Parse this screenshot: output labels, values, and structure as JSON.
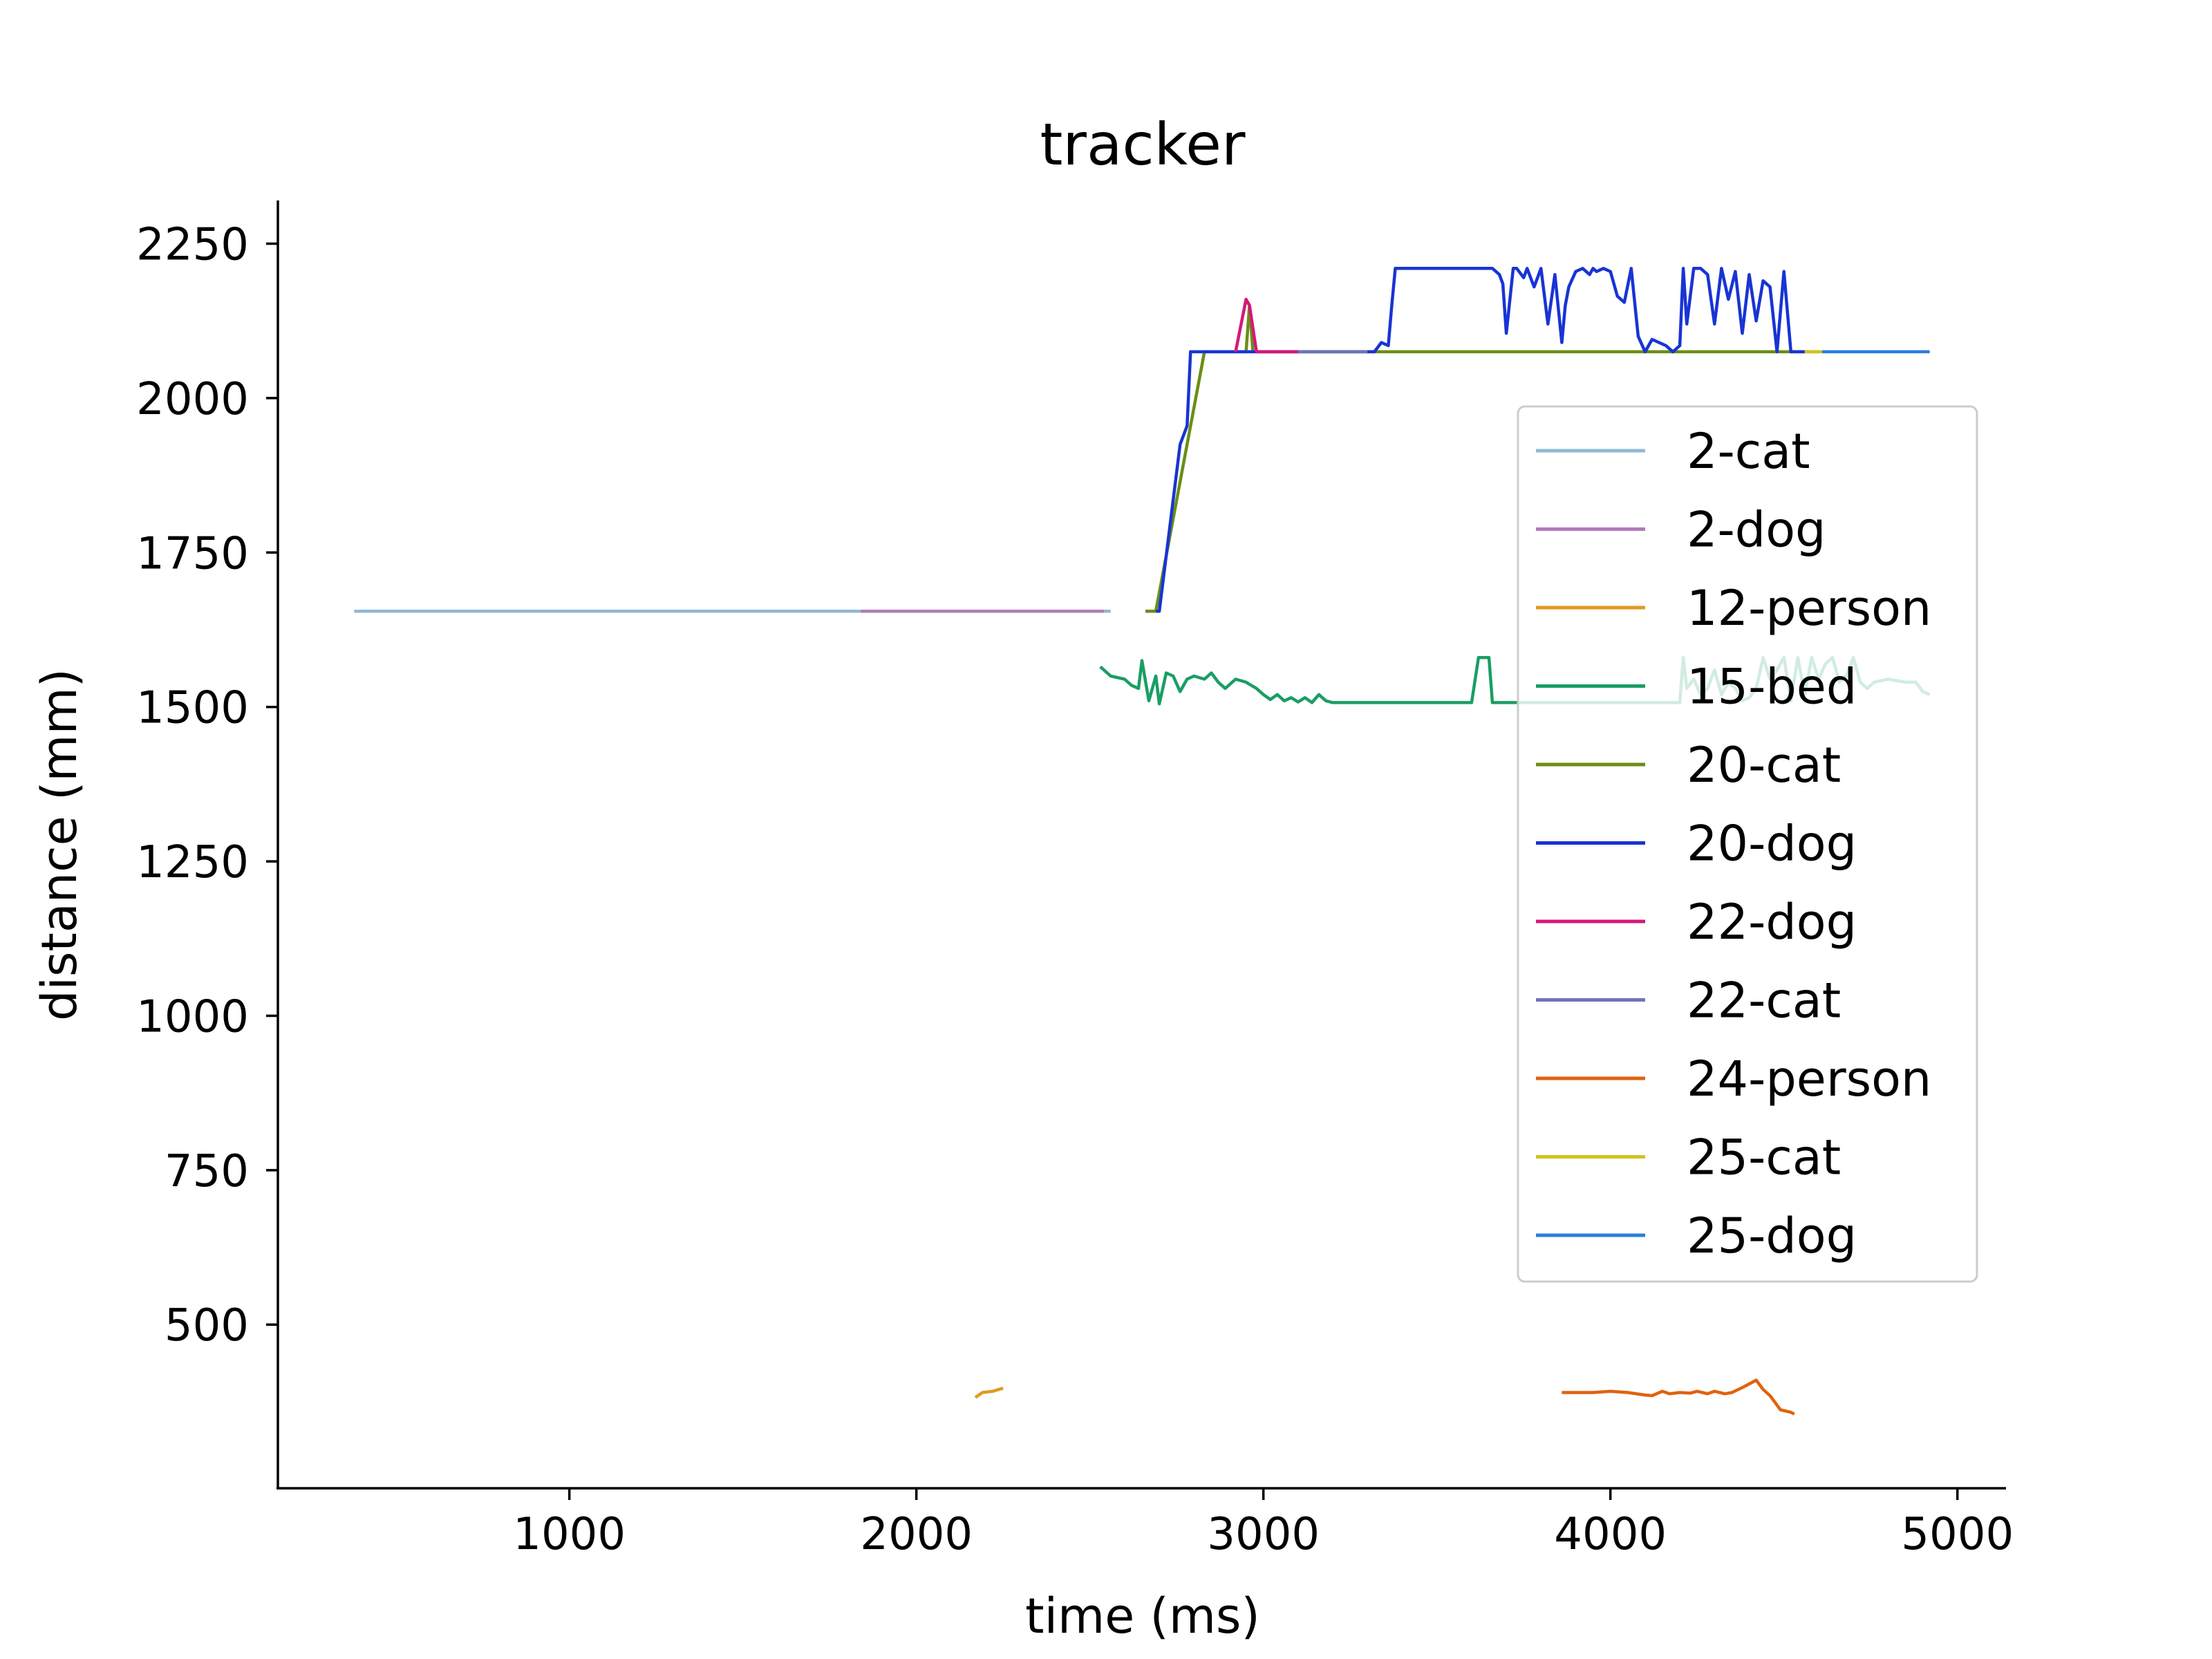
{
  "chart_data": {
    "type": "line",
    "title": "tracker",
    "xlabel": "time (ms)",
    "ylabel": "distance (mm)",
    "xlim": [
      160,
      5140
    ],
    "ylim": [
      235,
      2320
    ],
    "xticks": [
      1000,
      2000,
      3000,
      4000,
      5000
    ],
    "yticks": [
      500,
      750,
      1000,
      1250,
      1500,
      1750,
      2000,
      2250
    ],
    "grid": false,
    "legend_position": "right",
    "series": [
      {
        "name": "2-cat",
        "color": "#8fb8d6",
        "x": [
          380,
          2560
        ],
        "y": [
          1655,
          1655
        ]
      },
      {
        "name": "2-dog",
        "color": "#b07ab8",
        "x": [
          1840,
          2540
        ],
        "y": [
          1655,
          1655
        ]
      },
      {
        "name": "12-person",
        "color": "#e09a22",
        "x": [
          2170,
          2190,
          2220,
          2250
        ],
        "y": [
          382,
          390,
          392,
          397
        ]
      },
      {
        "name": "15-bed",
        "color": "#1a9e64",
        "x": [
          2530,
          2560,
          2600,
          2620,
          2640,
          2650,
          2670,
          2690,
          2700,
          2720,
          2740,
          2760,
          2780,
          2800,
          2830,
          2850,
          2870,
          2890,
          2920,
          2950,
          2980,
          3000,
          3020,
          3040,
          3060,
          3080,
          3100,
          3120,
          3140,
          3160,
          3180,
          3200,
          3300,
          3400,
          3500,
          3600,
          3620,
          3650,
          3660,
          3700,
          3800,
          3900,
          4000,
          4100,
          4200,
          4210,
          4220,
          4240,
          4260,
          4280,
          4300,
          4320,
          4340,
          4360,
          4380,
          4400,
          4420,
          4440,
          4460,
          4480,
          4500,
          4520,
          4540,
          4560,
          4580,
          4600,
          4620,
          4640,
          4660,
          4680,
          4700,
          4720,
          4740,
          4760,
          4800,
          4850,
          4880,
          4900,
          4920
        ],
        "y": [
          1565,
          1550,
          1545,
          1535,
          1530,
          1575,
          1510,
          1550,
          1505,
          1555,
          1550,
          1525,
          1545,
          1550,
          1545,
          1555,
          1540,
          1530,
          1545,
          1540,
          1530,
          1520,
          1512,
          1520,
          1510,
          1515,
          1508,
          1515,
          1507,
          1520,
          1510,
          1507,
          1507,
          1507,
          1507,
          1507,
          1580,
          1580,
          1507,
          1507,
          1507,
          1507,
          1507,
          1507,
          1507,
          1580,
          1530,
          1545,
          1520,
          1530,
          1560,
          1520,
          1540,
          1530,
          1510,
          1515,
          1530,
          1580,
          1545,
          1560,
          1580,
          1510,
          1580,
          1520,
          1580,
          1545,
          1570,
          1580,
          1540,
          1550,
          1580,
          1540,
          1530,
          1540,
          1545,
          1540,
          1540,
          1525,
          1520
        ]
      },
      {
        "name": "20-cat",
        "color": "#6b8e14",
        "x": [
          2660,
          2690,
          2830,
          2950,
          2960,
          2970,
          4600
        ],
        "y": [
          1655,
          1655,
          2075,
          2075,
          2150,
          2075,
          2075
        ]
      },
      {
        "name": "20-dog",
        "color": "#1834d4",
        "x": [
          2690,
          2700,
          2760,
          2780,
          2790,
          2810,
          2830,
          2850,
          2900,
          3000,
          3100,
          3200,
          3300,
          3320,
          3340,
          3360,
          3370,
          3380,
          3400,
          3500,
          3600,
          3660,
          3680,
          3690,
          3700,
          3720,
          3730,
          3750,
          3760,
          3780,
          3800,
          3820,
          3840,
          3860,
          3870,
          3880,
          3900,
          3920,
          3940,
          3950,
          3960,
          3980,
          4000,
          4020,
          4040,
          4060,
          4080,
          4100,
          4120,
          4140,
          4160,
          4180,
          4200,
          4210,
          4220,
          4240,
          4260,
          4280,
          4300,
          4320,
          4340,
          4360,
          4380,
          4400,
          4420,
          4440,
          4460,
          4480,
          4500,
          4520,
          4540,
          4560
        ],
        "y": [
          1655,
          1655,
          1925,
          1955,
          2075,
          2075,
          2075,
          2075,
          2075,
          2075,
          2075,
          2075,
          2075,
          2075,
          2090,
          2085,
          2150,
          2210,
          2210,
          2210,
          2210,
          2210,
          2200,
          2185,
          2105,
          2210,
          2210,
          2195,
          2210,
          2180,
          2210,
          2120,
          2200,
          2090,
          2150,
          2180,
          2205,
          2210,
          2200,
          2210,
          2205,
          2210,
          2205,
          2165,
          2155,
          2210,
          2100,
          2075,
          2095,
          2090,
          2085,
          2075,
          2085,
          2210,
          2120,
          2210,
          2210,
          2200,
          2120,
          2210,
          2160,
          2205,
          2105,
          2200,
          2125,
          2190,
          2180,
          2075,
          2205,
          2075,
          2075,
          2075
        ]
      },
      {
        "name": "22-dog",
        "color": "#d4187a",
        "x": [
          2920,
          2950,
          2960,
          2980,
          3000,
          3100
        ],
        "y": [
          2075,
          2160,
          2150,
          2075,
          2075,
          2075
        ]
      },
      {
        "name": "22-cat",
        "color": "#6e74b8",
        "x": [
          3100,
          3300
        ],
        "y": [
          2075,
          2075
        ]
      },
      {
        "name": "24-person",
        "color": "#e0620e",
        "x": [
          3860,
          3900,
          3950,
          4000,
          4050,
          4100,
          4120,
          4150,
          4170,
          4200,
          4230,
          4250,
          4280,
          4300,
          4330,
          4350,
          4380,
          4420,
          4440,
          4460,
          4490,
          4520,
          4530
        ],
        "y": [
          390,
          390,
          390,
          392,
          390,
          386,
          385,
          392,
          388,
          390,
          389,
          392,
          388,
          392,
          388,
          390,
          398,
          410,
          395,
          385,
          362,
          358,
          355
        ]
      },
      {
        "name": "25-cat",
        "color": "#d2c21e",
        "x": [
          4560,
          4610
        ],
        "y": [
          2075,
          2075
        ]
      },
      {
        "name": "25-dog",
        "color": "#2a7de0",
        "x": [
          4610,
          4920
        ],
        "y": [
          2075,
          2075
        ]
      }
    ]
  }
}
